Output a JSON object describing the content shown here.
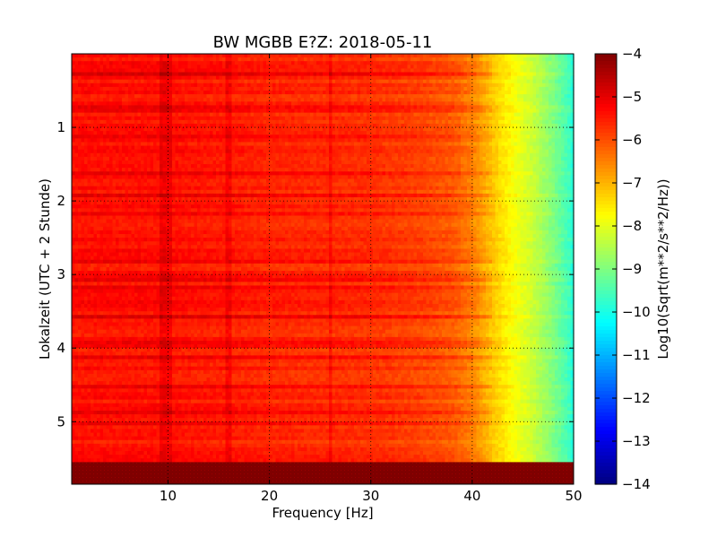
{
  "chart_data": {
    "type": "heatmap",
    "title": "BW MGBB E?Z: 2018-05-11",
    "xlabel": "Frequency [Hz]",
    "ylabel": "Lokalzeit (UTC + 2 Stunde)",
    "xlim": [
      0.5,
      50
    ],
    "ylim": [
      5.85,
      0.0
    ],
    "x_ticks": [
      10,
      20,
      30,
      40,
      50
    ],
    "y_ticks": [
      1,
      2,
      3,
      4,
      5
    ],
    "grid": "dotted",
    "data_end_time": 5.55,
    "colormap": "jet",
    "colorbar": {
      "label": "Log10(Sqrt(m**2/s**2/Hz))",
      "min": -14,
      "max": -4,
      "ticks": [
        -4,
        -5,
        -6,
        -7,
        -8,
        -9,
        -10,
        -11,
        -12,
        -13,
        -14
      ]
    },
    "spectrum_profile": [
      {
        "freq": 0.5,
        "value": -5.4
      },
      {
        "freq": 10,
        "value": -5.4
      },
      {
        "freq": 20,
        "value": -5.6
      },
      {
        "freq": 30,
        "value": -5.7
      },
      {
        "freq": 35,
        "value": -5.9
      },
      {
        "freq": 38,
        "value": -6.1
      },
      {
        "freq": 40,
        "value": -6.5
      },
      {
        "freq": 42,
        "value": -7.2
      },
      {
        "freq": 44,
        "value": -7.8
      },
      {
        "freq": 46,
        "value": -8.3
      },
      {
        "freq": 48,
        "value": -9.0
      },
      {
        "freq": 49.5,
        "value": -9.6
      },
      {
        "freq": 50,
        "value": -10.0
      }
    ],
    "strong_frequency_lines": [
      9.5,
      10.0,
      16.0,
      26.0
    ],
    "strong_time_bands": [
      0.25,
      1.9,
      3.05,
      3.15,
      3.55,
      4.85
    ],
    "no_data_color": "#7f0000"
  }
}
